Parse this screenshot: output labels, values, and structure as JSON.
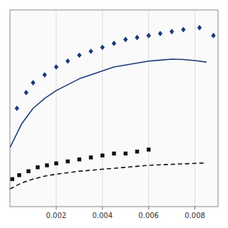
{
  "chart_data": {
    "type": "scatter",
    "xlim": [
      0.0,
      0.009
    ],
    "xticks": [
      0.002,
      0.004,
      0.006,
      0.008
    ],
    "ylim": [
      0.0,
      1.0
    ],
    "grid": true,
    "tick_labels": "x",
    "series": [
      {
        "type": "scatter",
        "marker": "diamond",
        "color": "#1a3a7a",
        "x": [
          0.0003,
          0.0007,
          0.001,
          0.0015,
          0.002,
          0.0025,
          0.003,
          0.0035,
          0.004,
          0.0045,
          0.005,
          0.0055,
          0.006,
          0.0065,
          0.007,
          0.0075,
          0.0082,
          0.0088
        ],
        "values": [
          0.5,
          0.58,
          0.63,
          0.67,
          0.71,
          0.74,
          0.77,
          0.79,
          0.81,
          0.83,
          0.85,
          0.86,
          0.87,
          0.88,
          0.89,
          0.9,
          0.91,
          0.87
        ]
      },
      {
        "type": "scatter",
        "marker": "square",
        "color": "#111111",
        "x": [
          0.0001,
          0.0004,
          0.0008,
          0.0012,
          0.0016,
          0.002,
          0.0025,
          0.003,
          0.0035,
          0.004,
          0.0045,
          0.005,
          0.0055,
          0.006
        ],
        "values": [
          0.14,
          0.16,
          0.18,
          0.2,
          0.21,
          0.22,
          0.23,
          0.24,
          0.25,
          0.26,
          0.27,
          0.27,
          0.28,
          0.29
        ]
      },
      {
        "type": "line",
        "line_style": "solid",
        "color": "#1a3a7a",
        "x": [
          0.0,
          0.0005,
          0.001,
          0.0015,
          0.002,
          0.0025,
          0.003,
          0.0035,
          0.004,
          0.0045,
          0.005,
          0.0055,
          0.006,
          0.0065,
          0.007,
          0.0075,
          0.008,
          0.0085
        ],
        "values": [
          0.3,
          0.42,
          0.5,
          0.55,
          0.59,
          0.62,
          0.65,
          0.67,
          0.69,
          0.71,
          0.72,
          0.73,
          0.74,
          0.745,
          0.75,
          0.748,
          0.743,
          0.735
        ]
      },
      {
        "type": "line",
        "line_style": "dashed",
        "color": "#111111",
        "x": [
          0.0,
          0.0005,
          0.001,
          0.0015,
          0.002,
          0.003,
          0.004,
          0.005,
          0.006,
          0.007,
          0.008,
          0.0085
        ],
        "values": [
          0.09,
          0.12,
          0.14,
          0.155,
          0.165,
          0.18,
          0.19,
          0.2,
          0.21,
          0.215,
          0.22,
          0.222
        ]
      }
    ]
  }
}
